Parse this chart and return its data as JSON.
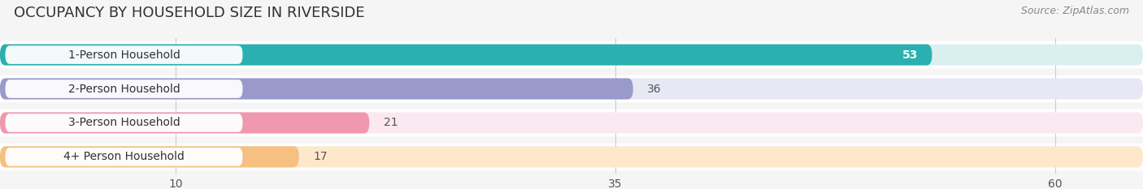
{
  "title": "OCCUPANCY BY HOUSEHOLD SIZE IN RIVERSIDE",
  "source": "Source: ZipAtlas.com",
  "categories": [
    "1-Person Household",
    "2-Person Household",
    "3-Person Household",
    "4+ Person Household"
  ],
  "values": [
    53,
    36,
    21,
    17
  ],
  "bar_colors": [
    "#2ab0b0",
    "#9999cc",
    "#f098b0",
    "#f5c080"
  ],
  "bar_background_colors": [
    "#daf0f0",
    "#e8e8f5",
    "#fce8f0",
    "#fde8cc"
  ],
  "label_bg_color": "#ffffff",
  "value_label_colors": [
    "#ffffff",
    "#666666",
    "#666666",
    "#666666"
  ],
  "xlim_max": 65,
  "xticks": [
    10,
    35,
    60
  ],
  "title_fontsize": 13,
  "source_fontsize": 9,
  "label_fontsize": 10,
  "value_fontsize": 10,
  "background_color": "#f5f5f5",
  "bar_gap_color": "#ffffff"
}
